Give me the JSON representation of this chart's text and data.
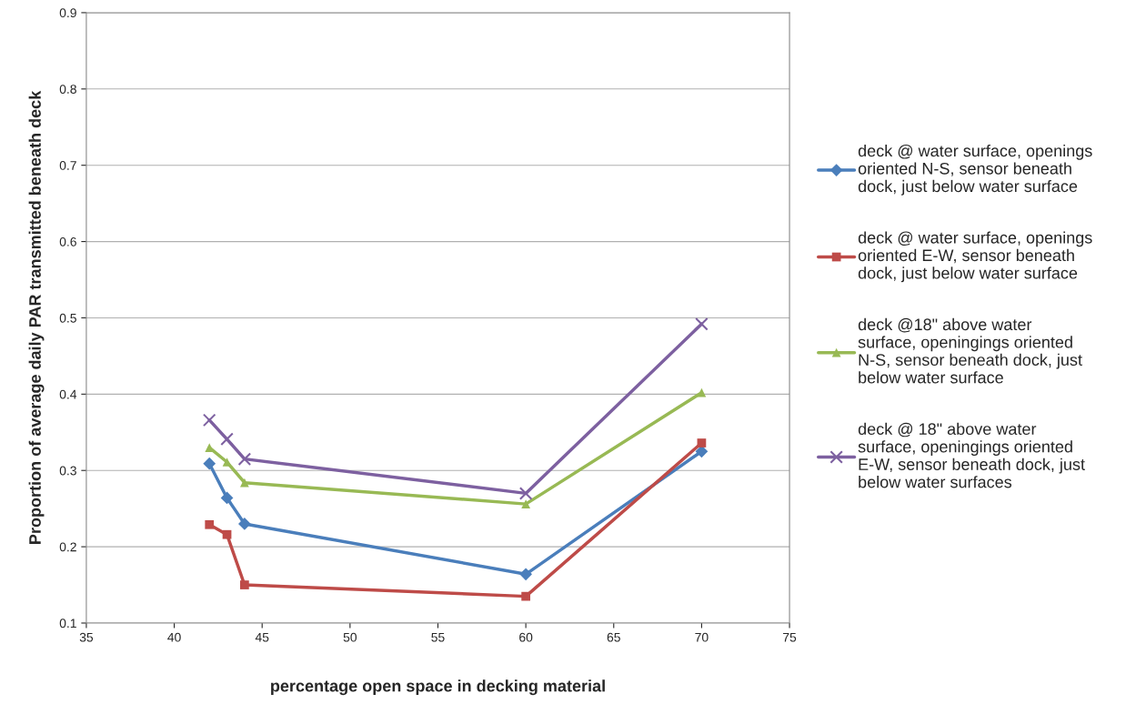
{
  "chart_data": {
    "type": "line",
    "xlabel": "percentage open space in decking material",
    "ylabel": "Proportion of average daily PAR transmitted beneath deck",
    "x": [
      42,
      43,
      44,
      60,
      70
    ],
    "series": [
      {
        "name": "deck @ water surface, openings\noriented N-S, sensor beneath\ndock, just below water surface",
        "color": "#4a7ebb",
        "marker": "diamond",
        "values": [
          0.309,
          0.264,
          0.23,
          0.164,
          0.325
        ]
      },
      {
        "name": "deck @ water surface, openings\noriented E-W, sensor beneath\ndock, just below water surface",
        "color": "#be4b48",
        "marker": "square",
        "values": [
          0.229,
          0.216,
          0.15,
          0.135,
          0.336
        ]
      },
      {
        "name": "deck @18\" above water\nsurface, openingings oriented\nN-S, sensor beneath dock, just\nbelow water surface",
        "color": "#98b954",
        "marker": "triangle",
        "values": [
          0.33,
          0.311,
          0.284,
          0.256,
          0.402
        ]
      },
      {
        "name": "deck @ 18\" above water\nsurface, openingings oriented\nE-W, sensor beneath dock, just\nbelow water surfaces",
        "color": "#7d60a0",
        "marker": "cross",
        "values": [
          0.366,
          0.341,
          0.315,
          0.27,
          0.492
        ]
      }
    ],
    "xlim": [
      35,
      75
    ],
    "xticks": [
      35,
      40,
      45,
      50,
      55,
      60,
      65,
      70,
      75
    ],
    "ylim": [
      0.1,
      0.9
    ],
    "yticks": [
      0.1,
      0.2,
      0.3,
      0.4,
      0.5,
      0.6,
      0.7,
      0.8,
      0.9
    ],
    "grid": "y",
    "legend": "right",
    "line_style": "solid"
  }
}
